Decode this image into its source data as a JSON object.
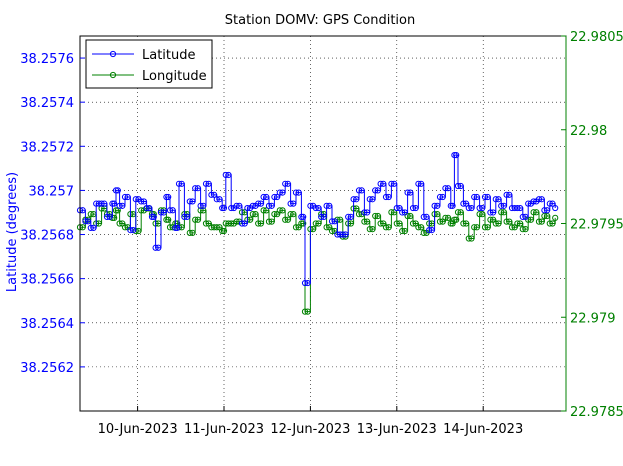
{
  "chart_data": {
    "type": "line",
    "title": "Station DOMV: GPS Condition",
    "ylabel": "Latitude (degrees)",
    "y2label": "",
    "x_range": [
      "2023-06-09T08:00",
      "2023-06-14T23:00"
    ],
    "x_ticks": [
      "10-Jun-2023",
      "11-Jun-2023",
      "12-Jun-2023",
      "13-Jun-2023",
      "14-Jun-2023"
    ],
    "ylim": [
      38.256,
      38.2577
    ],
    "y_ticks": [
      "38.2562",
      "38.2564",
      "38.2566",
      "38.2568",
      "38.257",
      "38.2572",
      "38.2574",
      "38.2576"
    ],
    "y2lim": [
      22.9785,
      22.9805
    ],
    "y2_ticks": [
      "22.9785",
      "22.979",
      "22.9795",
      "22.98",
      "22.9805"
    ],
    "grid": true,
    "legend_position": "top-left",
    "series": [
      {
        "name": "Latitude",
        "axis": "left",
        "color": "#0000ff",
        "marker": "circle",
        "points": [
          [
            "2023-06-09T08:00",
            38.25691
          ],
          [
            "2023-06-09T09:30",
            38.25686
          ],
          [
            "2023-06-09T11:00",
            38.25683
          ],
          [
            "2023-06-09T12:30",
            38.25694
          ],
          [
            "2023-06-09T14:00",
            38.25694
          ],
          [
            "2023-06-09T15:30",
            38.25688
          ],
          [
            "2023-06-09T17:00",
            38.25694
          ],
          [
            "2023-06-09T18:00",
            38.257
          ],
          [
            "2023-06-09T19:00",
            38.25693
          ],
          [
            "2023-06-09T20:30",
            38.25697
          ],
          [
            "2023-06-09T22:00",
            38.25682
          ],
          [
            "2023-06-09T23:30",
            38.25696
          ],
          [
            "2023-06-10T01:00",
            38.25695
          ],
          [
            "2023-06-10T02:30",
            38.25692
          ],
          [
            "2023-06-10T04:00",
            38.25688
          ],
          [
            "2023-06-10T05:00",
            38.25674
          ],
          [
            "2023-06-10T06:30",
            38.2569
          ],
          [
            "2023-06-10T08:00",
            38.25697
          ],
          [
            "2023-06-10T09:00",
            38.25691
          ],
          [
            "2023-06-10T10:30",
            38.25683
          ],
          [
            "2023-06-10T11:30",
            38.25703
          ],
          [
            "2023-06-10T13:00",
            38.25688
          ],
          [
            "2023-06-10T14:30",
            38.25695
          ],
          [
            "2023-06-10T16:00",
            38.25701
          ],
          [
            "2023-06-10T17:30",
            38.25693
          ],
          [
            "2023-06-10T19:00",
            38.25703
          ],
          [
            "2023-06-10T20:30",
            38.25698
          ],
          [
            "2023-06-10T22:00",
            38.25696
          ],
          [
            "2023-06-10T23:30",
            38.25692
          ],
          [
            "2023-06-11T00:30",
            38.25707
          ],
          [
            "2023-06-11T02:00",
            38.25692
          ],
          [
            "2023-06-11T03:30",
            38.25693
          ],
          [
            "2023-06-11T05:00",
            38.25685
          ],
          [
            "2023-06-11T06:30",
            38.25692
          ],
          [
            "2023-06-11T08:00",
            38.25693
          ],
          [
            "2023-06-11T09:30",
            38.25694
          ],
          [
            "2023-06-11T11:00",
            38.25697
          ],
          [
            "2023-06-11T12:30",
            38.25693
          ],
          [
            "2023-06-11T14:00",
            38.25697
          ],
          [
            "2023-06-11T15:30",
            38.25699
          ],
          [
            "2023-06-11T17:00",
            38.25703
          ],
          [
            "2023-06-11T18:30",
            38.25694
          ],
          [
            "2023-06-11T20:00",
            38.25699
          ],
          [
            "2023-06-11T21:30",
            38.25688
          ],
          [
            "2023-06-11T22:30",
            38.25658
          ],
          [
            "2023-06-12T00:00",
            38.25693
          ],
          [
            "2023-06-12T01:30",
            38.25692
          ],
          [
            "2023-06-12T03:00",
            38.25688
          ],
          [
            "2023-06-12T04:30",
            38.25693
          ],
          [
            "2023-06-12T06:00",
            38.25686
          ],
          [
            "2023-06-12T07:30",
            38.2568
          ],
          [
            "2023-06-12T09:00",
            38.2568
          ],
          [
            "2023-06-12T10:30",
            38.25688
          ],
          [
            "2023-06-12T12:00",
            38.25696
          ],
          [
            "2023-06-12T13:30",
            38.257
          ],
          [
            "2023-06-12T15:00",
            38.2569
          ],
          [
            "2023-06-12T16:30",
            38.25696
          ],
          [
            "2023-06-12T18:00",
            38.257
          ],
          [
            "2023-06-12T19:30",
            38.25703
          ],
          [
            "2023-06-12T21:00",
            38.25697
          ],
          [
            "2023-06-12T22:30",
            38.25703
          ],
          [
            "2023-06-13T00:00",
            38.25692
          ],
          [
            "2023-06-13T01:30",
            38.2569
          ],
          [
            "2023-06-13T03:00",
            38.25699
          ],
          [
            "2023-06-13T04:30",
            38.25692
          ],
          [
            "2023-06-13T06:00",
            38.25703
          ],
          [
            "2023-06-13T07:30",
            38.25688
          ],
          [
            "2023-06-13T09:00",
            38.25682
          ],
          [
            "2023-06-13T10:30",
            38.25693
          ],
          [
            "2023-06-13T12:00",
            38.25697
          ],
          [
            "2023-06-13T13:30",
            38.25701
          ],
          [
            "2023-06-13T15:00",
            38.25693
          ],
          [
            "2023-06-13T16:00",
            38.25716
          ],
          [
            "2023-06-13T17:00",
            38.25702
          ],
          [
            "2023-06-13T18:30",
            38.25694
          ],
          [
            "2023-06-13T20:00",
            38.25692
          ],
          [
            "2023-06-13T21:30",
            38.25697
          ],
          [
            "2023-06-13T23:00",
            38.25692
          ],
          [
            "2023-06-14T00:30",
            38.25697
          ],
          [
            "2023-06-14T02:00",
            38.2569
          ],
          [
            "2023-06-14T03:30",
            38.25696
          ],
          [
            "2023-06-14T05:00",
            38.25693
          ],
          [
            "2023-06-14T06:30",
            38.25698
          ],
          [
            "2023-06-14T08:00",
            38.25692
          ],
          [
            "2023-06-14T09:30",
            38.25692
          ],
          [
            "2023-06-14T11:00",
            38.25688
          ],
          [
            "2023-06-14T12:30",
            38.25694
          ],
          [
            "2023-06-14T14:00",
            38.25695
          ],
          [
            "2023-06-14T15:30",
            38.25696
          ],
          [
            "2023-06-14T17:00",
            38.25691
          ],
          [
            "2023-06-14T18:30",
            38.25694
          ],
          [
            "2023-06-14T20:00",
            38.25692
          ]
        ]
      },
      {
        "name": "Longitude",
        "axis": "right",
        "color": "#008000",
        "marker": "circle",
        "points": [
          [
            "2023-06-09T08:00",
            22.97948
          ],
          [
            "2023-06-09T09:30",
            22.97952
          ],
          [
            "2023-06-09T11:00",
            22.97955
          ],
          [
            "2023-06-09T12:30",
            22.9795
          ],
          [
            "2023-06-09T14:00",
            22.97958
          ],
          [
            "2023-06-09T15:30",
            22.97955
          ],
          [
            "2023-06-09T17:00",
            22.97953
          ],
          [
            "2023-06-09T18:00",
            22.97957
          ],
          [
            "2023-06-09T19:00",
            22.9795
          ],
          [
            "2023-06-09T20:30",
            22.97948
          ],
          [
            "2023-06-09T22:00",
            22.97955
          ],
          [
            "2023-06-09T23:30",
            22.97946
          ],
          [
            "2023-06-10T01:00",
            22.97957
          ],
          [
            "2023-06-10T02:30",
            22.97958
          ],
          [
            "2023-06-10T04:00",
            22.97955
          ],
          [
            "2023-06-10T05:00",
            22.9795
          ],
          [
            "2023-06-10T06:30",
            22.97957
          ],
          [
            "2023-06-10T08:00",
            22.97952
          ],
          [
            "2023-06-10T09:00",
            22.97948
          ],
          [
            "2023-06-10T10:30",
            22.9795
          ],
          [
            "2023-06-10T11:30",
            22.97948
          ],
          [
            "2023-06-10T13:00",
            22.97955
          ],
          [
            "2023-06-10T14:30",
            22.97945
          ],
          [
            "2023-06-10T16:00",
            22.97952
          ],
          [
            "2023-06-10T17:30",
            22.97957
          ],
          [
            "2023-06-10T19:00",
            22.9795
          ],
          [
            "2023-06-10T20:30",
            22.97948
          ],
          [
            "2023-06-10T22:00",
            22.97948
          ],
          [
            "2023-06-10T23:30",
            22.97946
          ],
          [
            "2023-06-11T00:30",
            22.9795
          ],
          [
            "2023-06-11T02:00",
            22.9795
          ],
          [
            "2023-06-11T03:30",
            22.97951
          ],
          [
            "2023-06-11T05:00",
            22.97956
          ],
          [
            "2023-06-11T06:30",
            22.97952
          ],
          [
            "2023-06-11T08:00",
            22.97955
          ],
          [
            "2023-06-11T09:30",
            22.9795
          ],
          [
            "2023-06-11T11:00",
            22.97957
          ],
          [
            "2023-06-11T12:30",
            22.97951
          ],
          [
            "2023-06-11T14:00",
            22.97955
          ],
          [
            "2023-06-11T15:30",
            22.97957
          ],
          [
            "2023-06-11T17:00",
            22.97952
          ],
          [
            "2023-06-11T18:30",
            22.97955
          ],
          [
            "2023-06-11T20:00",
            22.97948
          ],
          [
            "2023-06-11T21:30",
            22.9795
          ],
          [
            "2023-06-11T22:30",
            22.97903
          ],
          [
            "2023-06-12T00:00",
            22.97947
          ],
          [
            "2023-06-12T01:30",
            22.9795
          ],
          [
            "2023-06-12T03:00",
            22.97955
          ],
          [
            "2023-06-12T04:30",
            22.97948
          ],
          [
            "2023-06-12T06:00",
            22.97946
          ],
          [
            "2023-06-12T07:30",
            22.97952
          ],
          [
            "2023-06-12T09:00",
            22.97943
          ],
          [
            "2023-06-12T10:30",
            22.9795
          ],
          [
            "2023-06-12T12:00",
            22.97958
          ],
          [
            "2023-06-12T13:30",
            22.97955
          ],
          [
            "2023-06-12T15:00",
            22.97951
          ],
          [
            "2023-06-12T16:30",
            22.97947
          ],
          [
            "2023-06-12T18:00",
            22.97954
          ],
          [
            "2023-06-12T19:30",
            22.9795
          ],
          [
            "2023-06-12T21:00",
            22.97948
          ],
          [
            "2023-06-12T22:30",
            22.97956
          ],
          [
            "2023-06-13T00:00",
            22.9795
          ],
          [
            "2023-06-13T01:30",
            22.97946
          ],
          [
            "2023-06-13T03:00",
            22.97954
          ],
          [
            "2023-06-13T04:30",
            22.9795
          ],
          [
            "2023-06-13T06:00",
            22.97948
          ],
          [
            "2023-06-13T07:30",
            22.97945
          ],
          [
            "2023-06-13T09:00",
            22.9795
          ],
          [
            "2023-06-13T10:30",
            22.97955
          ],
          [
            "2023-06-13T12:00",
            22.97951
          ],
          [
            "2023-06-13T13:30",
            22.97953
          ],
          [
            "2023-06-13T15:00",
            22.9795
          ],
          [
            "2023-06-13T16:00",
            22.97952
          ],
          [
            "2023-06-13T17:00",
            22.97956
          ],
          [
            "2023-06-13T18:30",
            22.9795
          ],
          [
            "2023-06-13T20:00",
            22.97942
          ],
          [
            "2023-06-13T21:30",
            22.97948
          ],
          [
            "2023-06-13T23:00",
            22.97955
          ],
          [
            "2023-06-14T00:30",
            22.97948
          ],
          [
            "2023-06-14T02:00",
            22.97952
          ],
          [
            "2023-06-14T03:30",
            22.9795
          ],
          [
            "2023-06-14T05:00",
            22.97956
          ],
          [
            "2023-06-14T06:30",
            22.97951
          ],
          [
            "2023-06-14T08:00",
            22.97948
          ],
          [
            "2023-06-14T09:30",
            22.9795
          ],
          [
            "2023-06-14T11:00",
            22.97947
          ],
          [
            "2023-06-14T12:30",
            22.97952
          ],
          [
            "2023-06-14T14:00",
            22.97956
          ],
          [
            "2023-06-14T15:30",
            22.97951
          ],
          [
            "2023-06-14T17:00",
            22.97954
          ],
          [
            "2023-06-14T18:30",
            22.9795
          ],
          [
            "2023-06-14T20:00",
            22.97953
          ]
        ]
      }
    ]
  },
  "colors": {
    "left_axis": "#0000ff",
    "right_axis": "#008000",
    "grid": "#000000"
  }
}
